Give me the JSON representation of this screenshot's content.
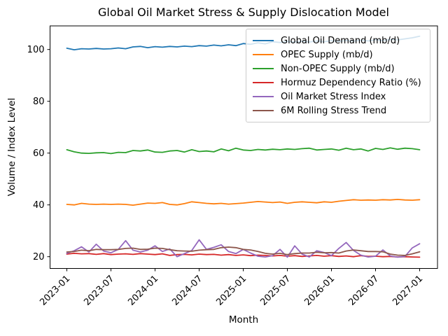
{
  "chart_data": {
    "type": "line",
    "title": "Global Oil Market Stress & Supply Dislocation Model",
    "xlabel": "Month",
    "ylabel": "Volume / Index Level",
    "grid": false,
    "legend_position": "upper right",
    "ylim": [
      15.6,
      109.1
    ],
    "y_ticks": [
      20,
      40,
      60,
      80,
      100
    ],
    "x_tick_positions": [
      0,
      6,
      12,
      18,
      24,
      30,
      36,
      42,
      48
    ],
    "x_tick_labels": [
      "2023-01",
      "2023-07",
      "2024-01",
      "2024-07",
      "2025-01",
      "2025-07",
      "2026-01",
      "2026-07",
      "2027-01"
    ],
    "x": [
      "2023-01",
      "2023-02",
      "2023-03",
      "2023-04",
      "2023-05",
      "2023-06",
      "2023-07",
      "2023-08",
      "2023-09",
      "2023-10",
      "2023-11",
      "2023-12",
      "2024-01",
      "2024-02",
      "2024-03",
      "2024-04",
      "2024-05",
      "2024-06",
      "2024-07",
      "2024-08",
      "2024-09",
      "2024-10",
      "2024-11",
      "2024-12",
      "2025-01",
      "2025-02",
      "2025-03",
      "2025-04",
      "2025-05",
      "2025-06",
      "2025-07",
      "2025-08",
      "2025-09",
      "2025-10",
      "2025-11",
      "2025-12",
      "2026-01",
      "2026-02",
      "2026-03",
      "2026-04",
      "2026-05",
      "2026-06",
      "2026-07",
      "2026-08",
      "2026-09",
      "2026-10",
      "2026-11",
      "2026-12",
      "2027-01"
    ],
    "series": [
      {
        "name": "Global Oil Demand (mb/d)",
        "color": "#1f77b4",
        "values": [
          100.5,
          99.9,
          100.3,
          100.2,
          100.4,
          100.2,
          100.3,
          100.6,
          100.3,
          101.0,
          101.2,
          100.7,
          101.1,
          100.9,
          101.2,
          101.0,
          101.3,
          101.1,
          101.5,
          101.3,
          101.7,
          101.4,
          101.8,
          101.5,
          102.3,
          102.0,
          102.6,
          102.2,
          103.0,
          102.7,
          103.1,
          102.8,
          103.2,
          102.9,
          103.3,
          103.0,
          103.4,
          103.1,
          103.5,
          103.2,
          103.6,
          103.3,
          103.7,
          103.4,
          103.9,
          103.7,
          104.1,
          104.5,
          105.1
        ]
      },
      {
        "name": "OPEC Supply (mb/d)",
        "color": "#ff7f0e",
        "values": [
          40.2,
          40.0,
          40.6,
          40.3,
          40.2,
          40.3,
          40.2,
          40.3,
          40.2,
          39.9,
          40.3,
          40.7,
          40.6,
          40.9,
          40.2,
          40.0,
          40.5,
          41.2,
          40.9,
          40.6,
          40.4,
          40.6,
          40.3,
          40.5,
          40.7,
          41.0,
          41.3,
          41.1,
          40.9,
          41.1,
          40.6,
          41.0,
          41.2,
          41.0,
          40.8,
          41.2,
          41.0,
          41.4,
          41.7,
          42.0,
          41.8,
          41.9,
          41.8,
          42.0,
          41.9,
          42.1,
          41.9,
          41.8,
          42.0
        ]
      },
      {
        "name": "Non-OPEC Supply (mb/d)",
        "color": "#2ca02c",
        "values": [
          61.3,
          60.5,
          60.0,
          59.9,
          60.1,
          60.2,
          59.8,
          60.3,
          60.2,
          61.0,
          60.8,
          61.2,
          60.4,
          60.3,
          60.8,
          61.0,
          60.4,
          61.3,
          60.6,
          60.8,
          60.5,
          61.6,
          60.9,
          61.9,
          61.2,
          61.0,
          61.4,
          61.2,
          61.5,
          61.3,
          61.6,
          61.4,
          61.7,
          61.9,
          61.2,
          61.4,
          61.6,
          61.1,
          61.9,
          61.3,
          61.6,
          60.8,
          61.8,
          61.4,
          62.0,
          61.5,
          61.9,
          61.7,
          61.3
        ]
      },
      {
        "name": "Hormuz Dependency Ratio (%)",
        "color": "#d62728",
        "values": [
          21.0,
          21.3,
          21.1,
          21.2,
          20.9,
          21.2,
          20.8,
          21.0,
          21.1,
          20.9,
          21.2,
          21.0,
          20.8,
          21.1,
          20.5,
          20.8,
          20.9,
          20.7,
          21.0,
          20.8,
          20.9,
          20.6,
          20.8,
          20.5,
          20.7,
          20.4,
          20.6,
          20.5,
          20.3,
          20.5,
          20.2,
          20.4,
          20.1,
          20.3,
          20.5,
          20.2,
          20.4,
          20.1,
          20.3,
          20.0,
          20.4,
          20.1,
          20.2,
          20.0,
          20.1,
          19.9,
          20.0,
          19.9,
          19.8
        ]
      },
      {
        "name": "Oil Market Stress Index",
        "color": "#9467bd",
        "values": [
          21.3,
          22.3,
          23.8,
          21.8,
          24.8,
          22.2,
          21.5,
          22.8,
          26.2,
          22.5,
          21.8,
          22.5,
          24.2,
          22.0,
          23.0,
          20.0,
          21.2,
          22.4,
          26.5,
          22.8,
          23.6,
          24.6,
          22.0,
          21.2,
          22.8,
          21.4,
          20.2,
          19.9,
          20.4,
          22.8,
          19.8,
          24.2,
          21.0,
          19.9,
          22.3,
          21.6,
          20.4,
          23.2,
          25.5,
          22.4,
          20.6,
          19.9,
          20.2,
          22.6,
          20.3,
          19.8,
          20.1,
          23.4,
          25.0
        ]
      },
      {
        "name": "6M Rolling Stress Trend",
        "color": "#8c564b",
        "values": [
          21.8,
          22.0,
          22.5,
          22.3,
          22.8,
          22.7,
          22.7,
          22.8,
          23.2,
          23.3,
          22.8,
          22.9,
          23.3,
          23.2,
          22.7,
          22.3,
          22.2,
          22.1,
          22.5,
          22.7,
          22.8,
          23.5,
          23.7,
          23.5,
          22.8,
          22.6,
          22.0,
          21.3,
          21.0,
          21.3,
          20.8,
          21.2,
          21.4,
          21.4,
          21.7,
          21.5,
          21.6,
          21.4,
          22.2,
          22.6,
          22.3,
          22.0,
          22.0,
          21.9,
          21.0,
          20.6,
          20.5,
          21.1,
          21.9
        ]
      }
    ]
  }
}
